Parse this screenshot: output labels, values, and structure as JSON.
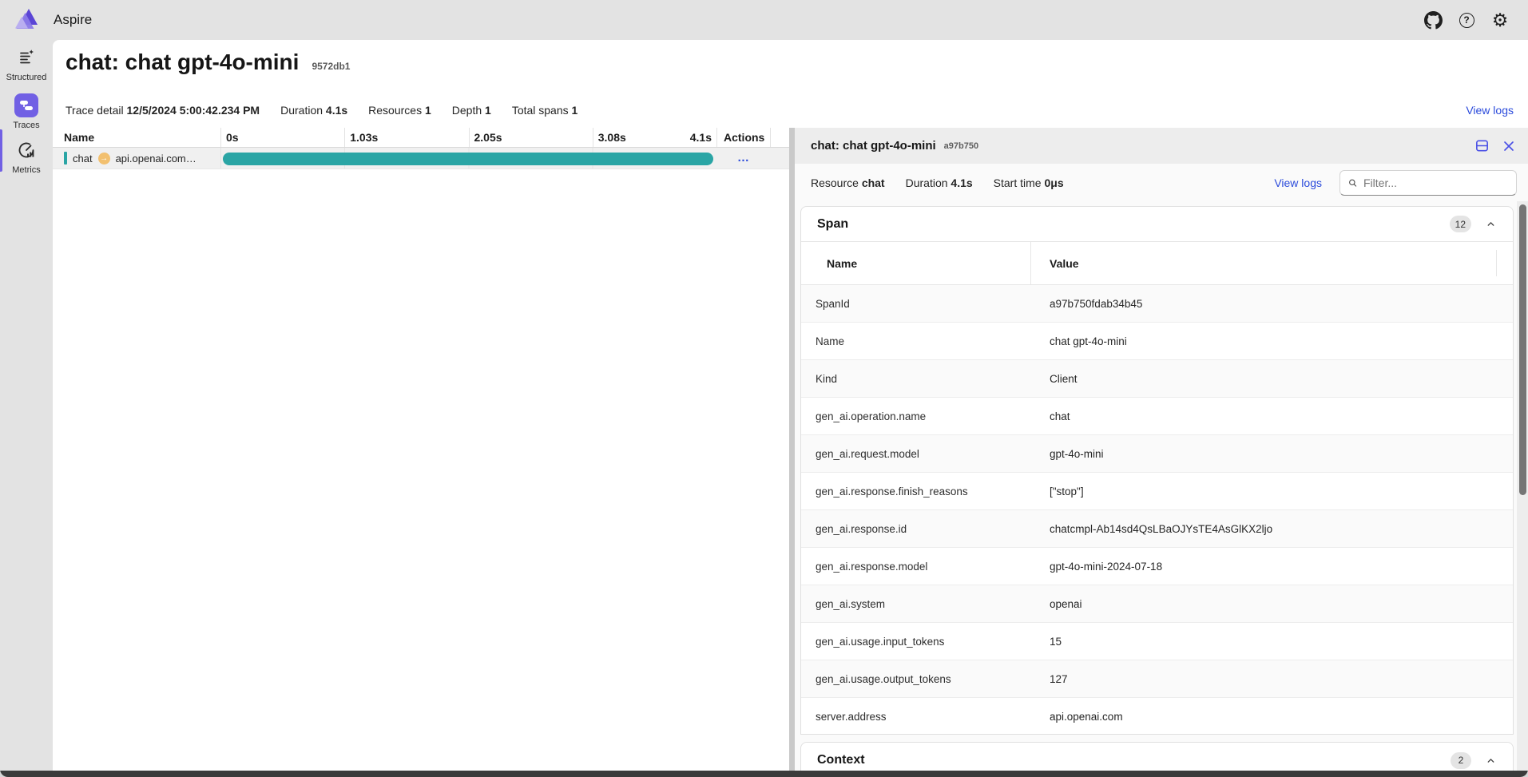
{
  "app": {
    "title": "Aspire"
  },
  "topbar": {
    "icons": [
      "github-icon",
      "help-icon",
      "settings-gear-icon"
    ]
  },
  "sidebar": {
    "items": [
      {
        "label": "Structured",
        "icon": "structured-logs-icon",
        "active": false
      },
      {
        "label": "Traces",
        "icon": "traces-icon",
        "active": true
      },
      {
        "label": "Metrics",
        "icon": "metrics-icon",
        "active": false
      }
    ]
  },
  "page": {
    "title": "chat: chat gpt-4o-mini",
    "badge": "9572db1"
  },
  "trace_detail": {
    "label": "Trace detail",
    "timestamp": "12/5/2024 5:00:42.234 PM",
    "duration_label": "Duration",
    "duration": "4.1s",
    "resources_label": "Resources",
    "resources": "1",
    "depth_label": "Depth",
    "depth": "1",
    "total_spans_label": "Total spans",
    "total_spans": "1",
    "view_logs": "View logs"
  },
  "waterfall": {
    "columns": {
      "name": "Name",
      "actions": "Actions",
      "ticks": [
        "0s",
        "1.03s",
        "2.05s",
        "3.08s",
        "4.1s"
      ]
    },
    "row": {
      "name": "chat",
      "destination": "api.openai.com…",
      "actions": "…"
    },
    "bar_color": "#2aa5a5"
  },
  "details_panel": {
    "title": "chat: chat gpt-4o-mini",
    "badge": "a97b750",
    "meta": {
      "resource_label": "Resource",
      "resource": "chat",
      "duration_label": "Duration",
      "duration": "4.1s",
      "start_label": "Start time",
      "start": "0μs"
    },
    "view_logs": "View logs",
    "filter_placeholder": "Filter...",
    "span_section": {
      "title": "Span",
      "count": "12",
      "columns": [
        "Name",
        "Value"
      ],
      "rows": [
        [
          "SpanId",
          "a97b750fdab34b45"
        ],
        [
          "Name",
          "chat gpt-4o-mini"
        ],
        [
          "Kind",
          "Client"
        ],
        [
          "gen_ai.operation.name",
          "chat"
        ],
        [
          "gen_ai.request.model",
          "gpt-4o-mini"
        ],
        [
          "gen_ai.response.finish_reasons",
          "[\"stop\"]"
        ],
        [
          "gen_ai.response.id",
          "chatcmpl-Ab14sd4QsLBaOJYsTE4AsGlKX2ljo"
        ],
        [
          "gen_ai.response.model",
          "gpt-4o-mini-2024-07-18"
        ],
        [
          "gen_ai.system",
          "openai"
        ],
        [
          "gen_ai.usage.input_tokens",
          "15"
        ],
        [
          "gen_ai.usage.output_tokens",
          "127"
        ],
        [
          "server.address",
          "api.openai.com"
        ]
      ]
    },
    "context_section": {
      "title": "Context",
      "count": "2"
    }
  },
  "colors": {
    "accent_purple": "#7160e4",
    "span_teal": "#2aa5a5",
    "link_blue": "#2b4bdb",
    "panel_icon_indigo": "#4a50e6",
    "destination_amber": "#f2c06f",
    "chrome_gray": "#e3e3e3"
  }
}
